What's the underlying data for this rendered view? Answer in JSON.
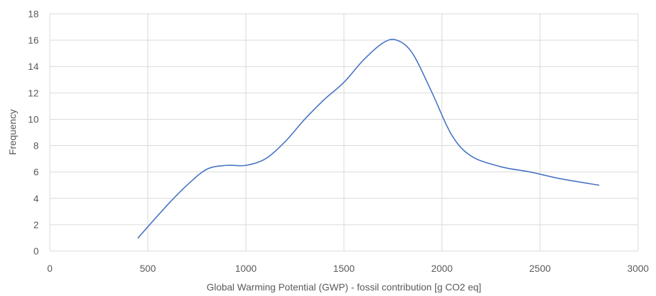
{
  "chart_data": {
    "type": "line",
    "title": "",
    "xlabel": "Global Warming Potential (GWP) - fossil contribution [g CO2 eq]",
    "ylabel": "Frequency",
    "xlim": [
      0,
      3000
    ],
    "ylim": [
      0,
      18
    ],
    "x_ticks": [
      0,
      500,
      1000,
      1500,
      2000,
      2500,
      3000
    ],
    "y_ticks": [
      0,
      2,
      4,
      6,
      8,
      10,
      12,
      14,
      16,
      18
    ],
    "grid": true,
    "legend": "none",
    "smooth": true,
    "series": [
      {
        "color": "#4472c4",
        "x": [
          450,
          600,
          700,
          800,
          900,
          1000,
          1100,
          1200,
          1300,
          1400,
          1500,
          1600,
          1700,
          1770,
          1850,
          1950,
          2050,
          2150,
          2300,
          2450,
          2600,
          2800
        ],
        "y": [
          1.0,
          3.5,
          5.0,
          6.2,
          6.5,
          6.5,
          7.0,
          8.3,
          10.0,
          11.5,
          12.8,
          14.5,
          15.8,
          16.0,
          15.0,
          12.0,
          8.8,
          7.2,
          6.4,
          6.0,
          5.5,
          5.0
        ]
      }
    ]
  }
}
